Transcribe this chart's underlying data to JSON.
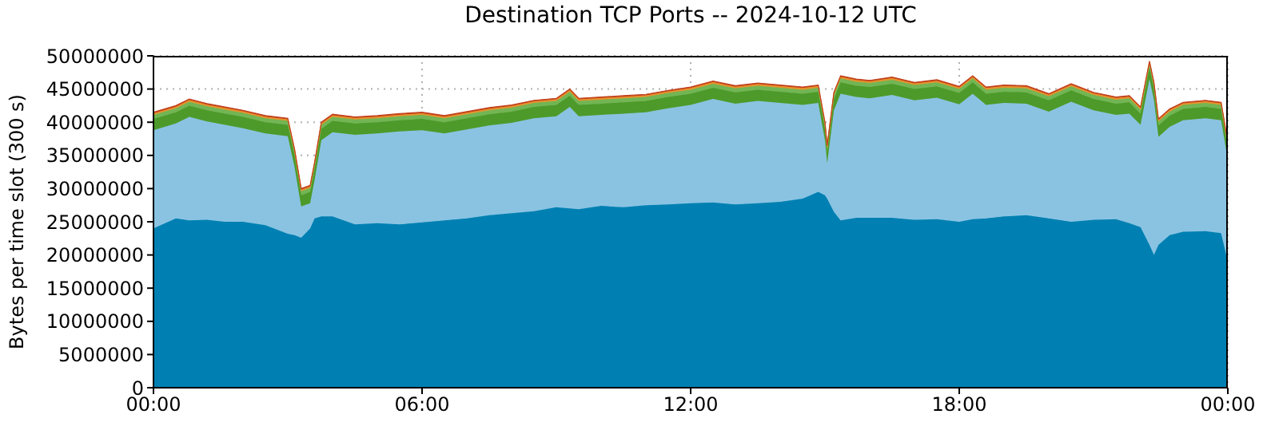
{
  "chart_data": {
    "type": "area",
    "title": "Destination TCP Ports -- 2024-10-12 UTC",
    "ylabel": "Bytes per time slot (300 s)",
    "stacked": true,
    "grid": true,
    "x": [
      0,
      0.5,
      0.8,
      1.2,
      1.6,
      2,
      2.5,
      3,
      3.15,
      3.3,
      3.5,
      3.6,
      3.75,
      4,
      4.5,
      5,
      5.5,
      6,
      6.5,
      7,
      7.5,
      8,
      8.5,
      9,
      9.3,
      9.5,
      10,
      10.5,
      11,
      11.5,
      12,
      12.5,
      13,
      13.5,
      14,
      14.5,
      14.85,
      15,
      15.05,
      15.2,
      15.35,
      15.7,
      16,
      16.5,
      17,
      17.5,
      18,
      18.3,
      18.6,
      19,
      19.5,
      20,
      20.5,
      21,
      21.5,
      21.8,
      22.05,
      22.25,
      22.35,
      22.45,
      22.7,
      23,
      23.5,
      23.85,
      24
    ],
    "xlim": [
      0,
      24
    ],
    "xticks": [
      {
        "value": 0,
        "label": "00:00"
      },
      {
        "value": 6,
        "label": "06:00"
      },
      {
        "value": 12,
        "label": "12:00"
      },
      {
        "value": 18,
        "label": "18:00"
      },
      {
        "value": 24,
        "label": "00:00"
      }
    ],
    "ylim": [
      0,
      50000000
    ],
    "yticks": [
      0,
      5000000,
      10000000,
      15000000,
      20000000,
      25000000,
      30000000,
      35000000,
      40000000,
      45000000,
      50000000
    ],
    "series": [
      {
        "color": "#0080b2",
        "values": [
          24000000,
          25500000,
          25200000,
          25300000,
          25000000,
          25000000,
          24500000,
          23200000,
          23000000,
          22600000,
          24000000,
          25500000,
          25800000,
          25800000,
          24600000,
          24800000,
          24600000,
          24900000,
          25200000,
          25500000,
          26000000,
          26300000,
          26600000,
          27200000,
          27000000,
          26900000,
          27400000,
          27200000,
          27500000,
          27600000,
          27800000,
          27900000,
          27600000,
          27800000,
          28000000,
          28500000,
          29500000,
          29000000,
          28500000,
          26500000,
          25200000,
          25600000,
          25600000,
          25600000,
          25300000,
          25400000,
          25000000,
          25400000,
          25500000,
          25800000,
          26000000,
          25500000,
          25000000,
          25300000,
          25400000,
          24800000,
          24200000,
          21500000,
          20000000,
          21500000,
          23000000,
          23500000,
          23600000,
          23300000,
          19000000
        ]
      },
      {
        "color": "#8ac3e2",
        "values": [
          14800000,
          14300000,
          15600000,
          14800000,
          14600000,
          14100000,
          13800000,
          14700000,
          10300000,
          4700000,
          3800000,
          5800000,
          11500000,
          12700000,
          13500000,
          13500000,
          14000000,
          13900000,
          13100000,
          13400000,
          13500000,
          13600000,
          14000000,
          13700000,
          15300000,
          14000000,
          13700000,
          14100000,
          14000000,
          14500000,
          14800000,
          15600000,
          15200000,
          15400000,
          14900000,
          14100000,
          13400000,
          8300000,
          5300000,
          15300000,
          19100000,
          18200000,
          18000000,
          18500000,
          18000000,
          18300000,
          17700000,
          18900000,
          17100000,
          17100000,
          16800000,
          16100000,
          18100000,
          16500000,
          15700000,
          16500000,
          15400000,
          25000000,
          23300000,
          16300000,
          16300000,
          16800000,
          17000000,
          17000000,
          15300000
        ]
      },
      {
        "color": "#4d9a2a",
        "values": [
          1700000,
          1700000,
          1700000,
          1700000,
          1700000,
          1700000,
          1700000,
          1700000,
          1700000,
          1700000,
          1700000,
          1700000,
          1700000,
          1700000,
          1700000,
          1700000,
          1700000,
          1700000,
          1700000,
          1700000,
          1700000,
          1700000,
          1700000,
          1700000,
          1700000,
          1700000,
          1700000,
          1700000,
          1700000,
          1700000,
          1700000,
          1700000,
          1700000,
          1700000,
          1700000,
          1700000,
          1700000,
          1700000,
          1700000,
          1700000,
          1700000,
          1700000,
          1700000,
          1700000,
          1700000,
          1700000,
          1700000,
          1700000,
          1700000,
          1700000,
          1700000,
          1700000,
          1700000,
          1700000,
          1700000,
          1700000,
          1700000,
          1700000,
          1700000,
          1700000,
          1700000,
          1700000,
          1700000,
          1700000,
          1700000
        ]
      },
      {
        "color": "#72b554",
        "values": [
          600000,
          600000,
          600000,
          600000,
          600000,
          600000,
          600000,
          600000,
          600000,
          600000,
          600000,
          600000,
          600000,
          600000,
          600000,
          600000,
          600000,
          600000,
          600000,
          600000,
          600000,
          600000,
          600000,
          600000,
          600000,
          600000,
          600000,
          600000,
          600000,
          600000,
          600000,
          600000,
          600000,
          600000,
          600000,
          600000,
          600000,
          600000,
          600000,
          600000,
          600000,
          600000,
          600000,
          600000,
          600000,
          600000,
          600000,
          600000,
          600000,
          600000,
          600000,
          600000,
          600000,
          600000,
          600000,
          600000,
          600000,
          600000,
          600000,
          600000,
          600000,
          600000,
          600000,
          600000,
          600000
        ]
      },
      {
        "color": "#e6922a",
        "values": [
          250000,
          250000,
          250000,
          250000,
          250000,
          250000,
          250000,
          250000,
          250000,
          250000,
          250000,
          250000,
          250000,
          250000,
          250000,
          250000,
          250000,
          250000,
          250000,
          250000,
          250000,
          250000,
          250000,
          250000,
          250000,
          250000,
          250000,
          250000,
          250000,
          250000,
          250000,
          250000,
          250000,
          250000,
          250000,
          250000,
          250000,
          250000,
          250000,
          250000,
          250000,
          250000,
          250000,
          250000,
          250000,
          250000,
          250000,
          250000,
          250000,
          250000,
          250000,
          250000,
          250000,
          250000,
          250000,
          250000,
          250000,
          250000,
          250000,
          250000,
          250000,
          250000,
          250000,
          250000,
          250000
        ]
      },
      {
        "color": "#c2401c",
        "values": [
          150000,
          150000,
          150000,
          150000,
          150000,
          150000,
          150000,
          150000,
          150000,
          150000,
          150000,
          150000,
          150000,
          150000,
          150000,
          150000,
          150000,
          150000,
          150000,
          150000,
          150000,
          150000,
          150000,
          150000,
          150000,
          150000,
          150000,
          150000,
          150000,
          150000,
          150000,
          150000,
          150000,
          150000,
          150000,
          150000,
          150000,
          150000,
          150000,
          150000,
          150000,
          150000,
          150000,
          150000,
          150000,
          150000,
          150000,
          150000,
          150000,
          150000,
          150000,
          150000,
          150000,
          150000,
          150000,
          150000,
          150000,
          150000,
          150000,
          150000,
          150000,
          150000,
          150000,
          150000,
          150000
        ]
      }
    ]
  }
}
